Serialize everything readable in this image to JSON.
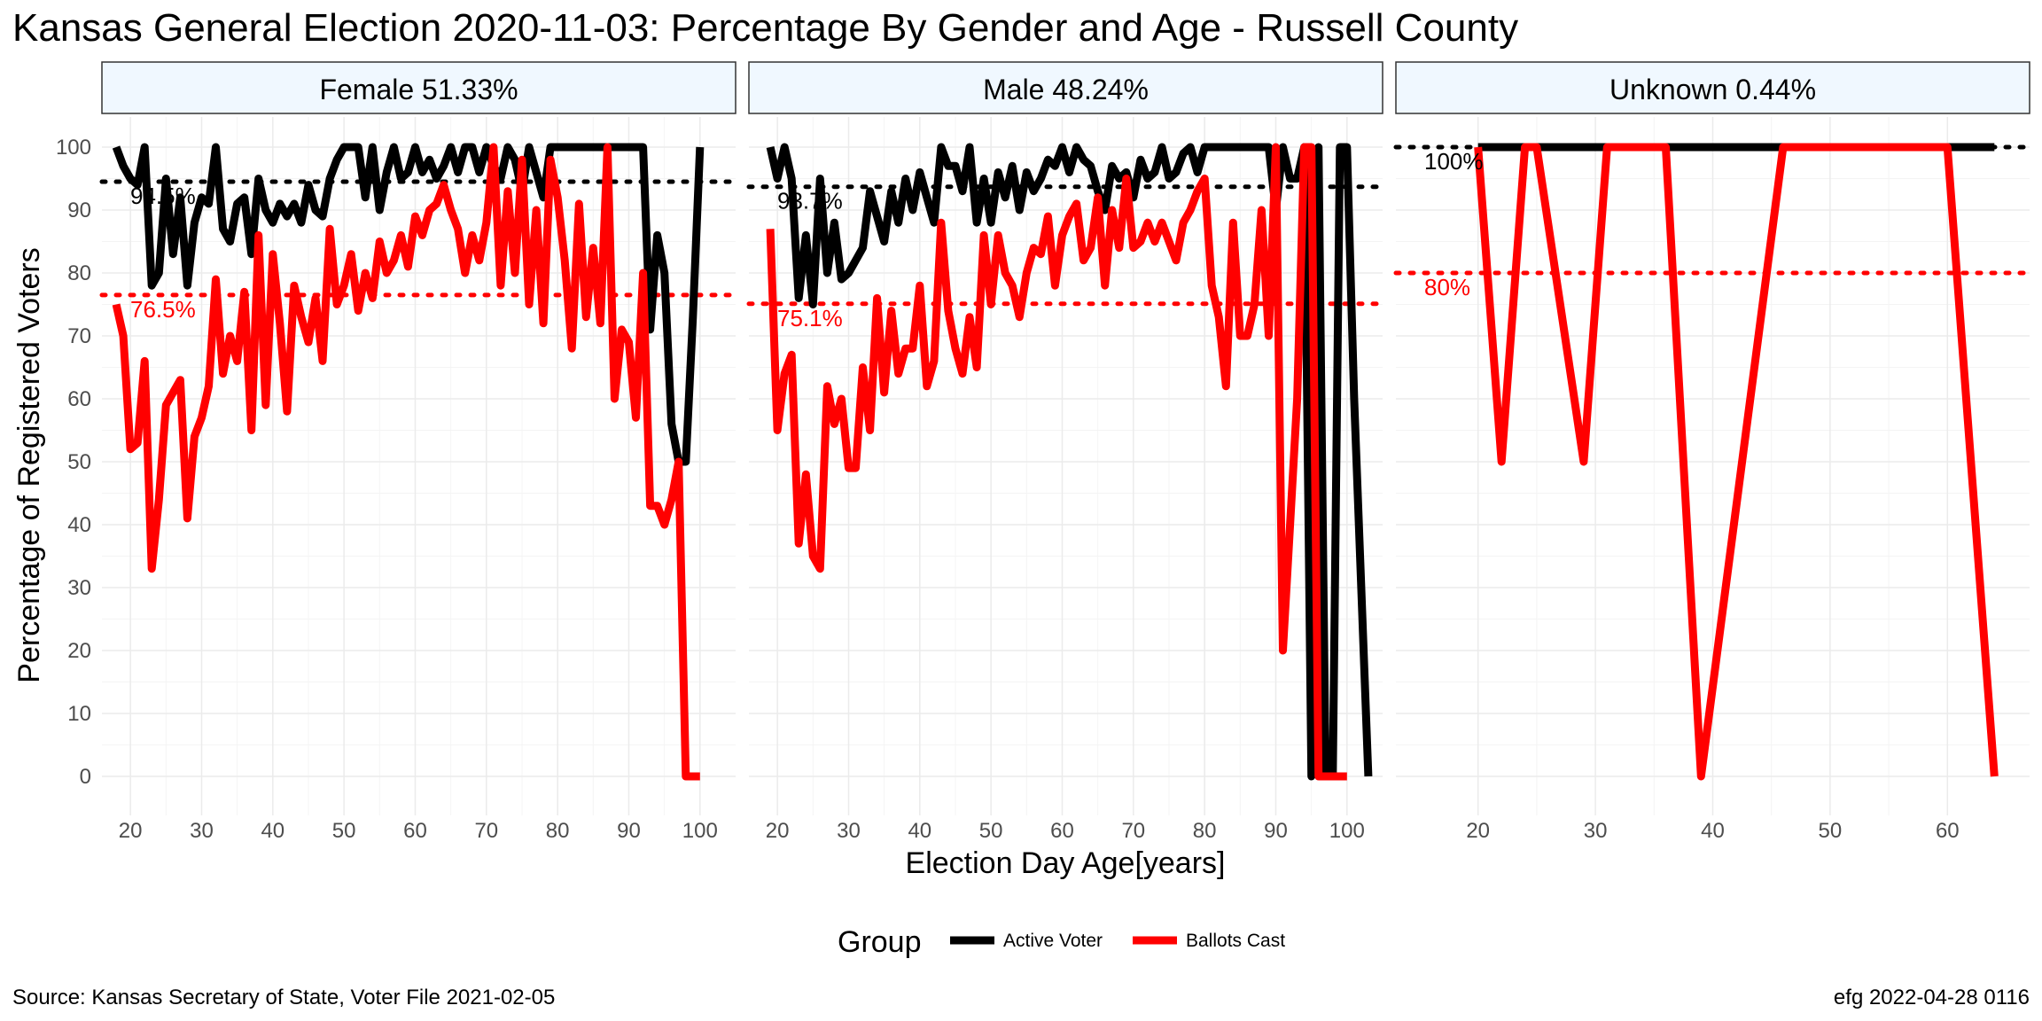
{
  "title": "Kansas General Election 2020-11-03:  Percentage By Gender and Age - Russell County",
  "caption_left": "Source:  Kansas Secretary of State, Voter File  2021-02-05",
  "caption_right": "efg 2022-04-28 0116",
  "colors": {
    "active": "#000000",
    "ballots": "#ff0000",
    "strip_fill": "#f0f8ff",
    "grid": "#ebebeb"
  },
  "chart_data": {
    "type": "line",
    "xlabel": "Election Day Age[years]",
    "ylabel": "Percentage of Registered Voters",
    "ylim": [
      0,
      100
    ],
    "yticks": [
      0,
      10,
      20,
      30,
      40,
      50,
      60,
      70,
      80,
      90,
      100
    ],
    "legend": {
      "title": "Group",
      "placement": "bottom",
      "entries": [
        "Active Voter",
        "Ballots Cast"
      ]
    },
    "panels": [
      {
        "label": "Female 51.33%",
        "xlim": [
          16,
          105
        ],
        "xticks": [
          20,
          30,
          40,
          50,
          60,
          70,
          80,
          90,
          100
        ],
        "active_ref": 94.5,
        "active_ref_label": "94.5%",
        "ballots_ref": 76.5,
        "ballots_ref_label": "76.5%",
        "series": [
          {
            "name": "Active Voter",
            "x": [
              18,
              19,
              20,
              21,
              22,
              23,
              24,
              25,
              26,
              27,
              28,
              29,
              30,
              31,
              32,
              33,
              34,
              35,
              36,
              37,
              38,
              39,
              40,
              41,
              42,
              43,
              44,
              45,
              46,
              47,
              48,
              49,
              50,
              51,
              52,
              53,
              54,
              55,
              56,
              57,
              58,
              59,
              60,
              61,
              62,
              63,
              64,
              65,
              66,
              67,
              68,
              69,
              70,
              71,
              72,
              73,
              74,
              75,
              76,
              77,
              78,
              79,
              80,
              81,
              82,
              83,
              84,
              85,
              86,
              87,
              88,
              89,
              90,
              91,
              92,
              93,
              94,
              95,
              96,
              97,
              98,
              99,
              100,
              101
            ],
            "y": [
              100,
              97,
              95,
              94,
              100,
              78,
              80,
              95,
              83,
              92,
              78,
              88,
              92,
              91,
              100,
              87,
              85,
              91,
              92,
              83,
              95,
              90,
              88,
              91,
              89,
              91,
              88,
              94,
              90,
              89,
              95,
              98,
              100,
              100,
              100,
              92,
              100,
              90,
              96,
              100,
              95,
              96,
              100,
              96,
              98,
              95,
              97,
              100,
              96,
              100,
              100,
              96,
              100,
              97,
              95,
              100,
              98,
              93,
              100,
              96,
              92,
              100,
              100,
              100,
              100,
              100,
              100,
              100,
              100,
              100,
              100,
              100,
              100,
              100,
              100,
              71,
              86,
              80,
              56,
              50,
              50,
              73,
              100,
              null
            ]
          },
          {
            "name": "Ballots Cast",
            "x": [
              18,
              19,
              20,
              21,
              22,
              23,
              24,
              25,
              26,
              27,
              28,
              29,
              30,
              31,
              32,
              33,
              34,
              35,
              36,
              37,
              38,
              39,
              40,
              41,
              42,
              43,
              44,
              45,
              46,
              47,
              48,
              49,
              50,
              51,
              52,
              53,
              54,
              55,
              56,
              57,
              58,
              59,
              60,
              61,
              62,
              63,
              64,
              65,
              66,
              67,
              68,
              69,
              70,
              71,
              72,
              73,
              74,
              75,
              76,
              77,
              78,
              79,
              80,
              81,
              82,
              83,
              84,
              85,
              86,
              87,
              88,
              89,
              90,
              91,
              92,
              93,
              94,
              95,
              96,
              97,
              98,
              99,
              100,
              101
            ],
            "y": [
              75,
              70,
              52,
              53,
              66,
              33,
              44,
              59,
              61,
              63,
              41,
              54,
              57,
              62,
              79,
              64,
              70,
              66,
              77,
              55,
              86,
              59,
              83,
              72,
              58,
              78,
              73,
              69,
              76,
              66,
              87,
              75,
              78,
              83,
              74,
              80,
              76,
              85,
              80,
              82,
              86,
              81,
              89,
              86,
              90,
              91,
              94,
              90,
              87,
              80,
              86,
              82,
              88,
              100,
              78,
              93,
              80,
              98,
              75,
              90,
              72,
              98,
              92,
              82,
              68,
              91,
              73,
              84,
              72,
              100,
              60,
              71,
              69,
              57,
              80,
              43,
              43,
              40,
              44,
              50,
              0,
              0,
              0,
              null
            ]
          }
        ]
      },
      {
        "label": "Male 48.24%",
        "xlim": [
          16,
          105
        ],
        "xticks": [
          20,
          30,
          40,
          50,
          60,
          70,
          80,
          90,
          100
        ],
        "active_ref": 93.7,
        "active_ref_label": "93.7%",
        "ballots_ref": 75.1,
        "ballots_ref_label": "75.1%",
        "series": [
          {
            "name": "Active Voter",
            "x": [
              19,
              20,
              21,
              22,
              23,
              24,
              25,
              26,
              27,
              28,
              29,
              30,
              31,
              32,
              33,
              34,
              35,
              36,
              37,
              38,
              39,
              40,
              41,
              42,
              43,
              44,
              45,
              46,
              47,
              48,
              49,
              50,
              51,
              52,
              53,
              54,
              55,
              56,
              57,
              58,
              59,
              60,
              61,
              62,
              63,
              64,
              65,
              66,
              67,
              68,
              69,
              70,
              71,
              72,
              73,
              74,
              75,
              76,
              77,
              78,
              79,
              80,
              81,
              82,
              83,
              84,
              85,
              86,
              87,
              88,
              89,
              90,
              91,
              92,
              93,
              94,
              95,
              96,
              97,
              98,
              99,
              100,
              101,
              102,
              103
            ],
            "y": [
              100,
              95,
              100,
              95,
              76,
              86,
              75,
              95,
              80,
              88,
              79,
              80,
              82,
              84,
              93,
              89,
              85,
              93,
              88,
              95,
              90,
              96,
              92,
              88,
              100,
              97,
              97,
              93,
              100,
              88,
              95,
              88,
              96,
              92,
              97,
              90,
              96,
              93,
              95,
              98,
              97,
              100,
              96,
              100,
              98,
              97,
              93,
              90,
              97,
              95,
              96,
              92,
              98,
              95,
              96,
              100,
              95,
              96,
              99,
              100,
              96,
              100,
              100,
              100,
              100,
              100,
              100,
              100,
              100,
              100,
              100,
              90,
              100,
              95,
              95,
              100,
              0,
              100,
              0,
              0,
              100,
              100,
              60,
              30,
              0
            ],
            "_note": ""
          },
          {
            "name": "Ballots Cast",
            "x": [
              19,
              20,
              21,
              22,
              23,
              24,
              25,
              26,
              27,
              28,
              29,
              30,
              31,
              32,
              33,
              34,
              35,
              36,
              37,
              38,
              39,
              40,
              41,
              42,
              43,
              44,
              45,
              46,
              47,
              48,
              49,
              50,
              51,
              52,
              53,
              54,
              55,
              56,
              57,
              58,
              59,
              60,
              61,
              62,
              63,
              64,
              65,
              66,
              67,
              68,
              69,
              70,
              71,
              72,
              73,
              74,
              75,
              76,
              77,
              78,
              79,
              80,
              81,
              82,
              83,
              84,
              85,
              86,
              87,
              88,
              89,
              90,
              91,
              92,
              93,
              94,
              95,
              96,
              97,
              98,
              99,
              100,
              101,
              102,
              103
            ],
            "y": [
              87,
              55,
              64,
              67,
              37,
              48,
              35,
              33,
              62,
              56,
              60,
              49,
              49,
              65,
              55,
              76,
              61,
              74,
              64,
              68,
              68,
              78,
              62,
              66,
              88,
              74,
              68,
              64,
              73,
              65,
              86,
              75,
              86,
              80,
              78,
              73,
              80,
              84,
              83,
              89,
              78,
              86,
              89,
              91,
              82,
              84,
              92,
              78,
              90,
              84,
              95,
              84,
              85,
              88,
              85,
              88,
              85,
              82,
              88,
              90,
              93,
              95,
              78,
              73,
              62,
              88,
              70,
              70,
              75,
              90,
              70,
              100,
              20,
              40,
              60,
              100,
              100,
              0,
              0,
              0,
              0,
              0,
              null,
              null,
              null
            ],
            "_note": ""
          }
        ]
      },
      {
        "label": "Unknown 0.44%",
        "xlim": [
          13,
          67
        ],
        "xticks": [
          20,
          30,
          40,
          50,
          60
        ],
        "active_ref": 100,
        "active_ref_label": "100%",
        "ballots_ref": 80,
        "ballots_ref_label": "80%",
        "series": [
          {
            "name": "Active Voter",
            "x": [
              20,
              22,
              24,
              25,
              29,
              31,
              36,
              39,
              46,
              60,
              64
            ],
            "y": [
              100,
              100,
              100,
              100,
              100,
              100,
              100,
              100,
              100,
              100,
              100
            ]
          },
          {
            "name": "Ballots Cast",
            "x": [
              20,
              22,
              24,
              25,
              29,
              31,
              36,
              39,
              46,
              60,
              64
            ],
            "y": [
              100,
              50,
              100,
              100,
              50,
              100,
              100,
              0,
              100,
              100,
              0
            ]
          }
        ]
      }
    ]
  }
}
